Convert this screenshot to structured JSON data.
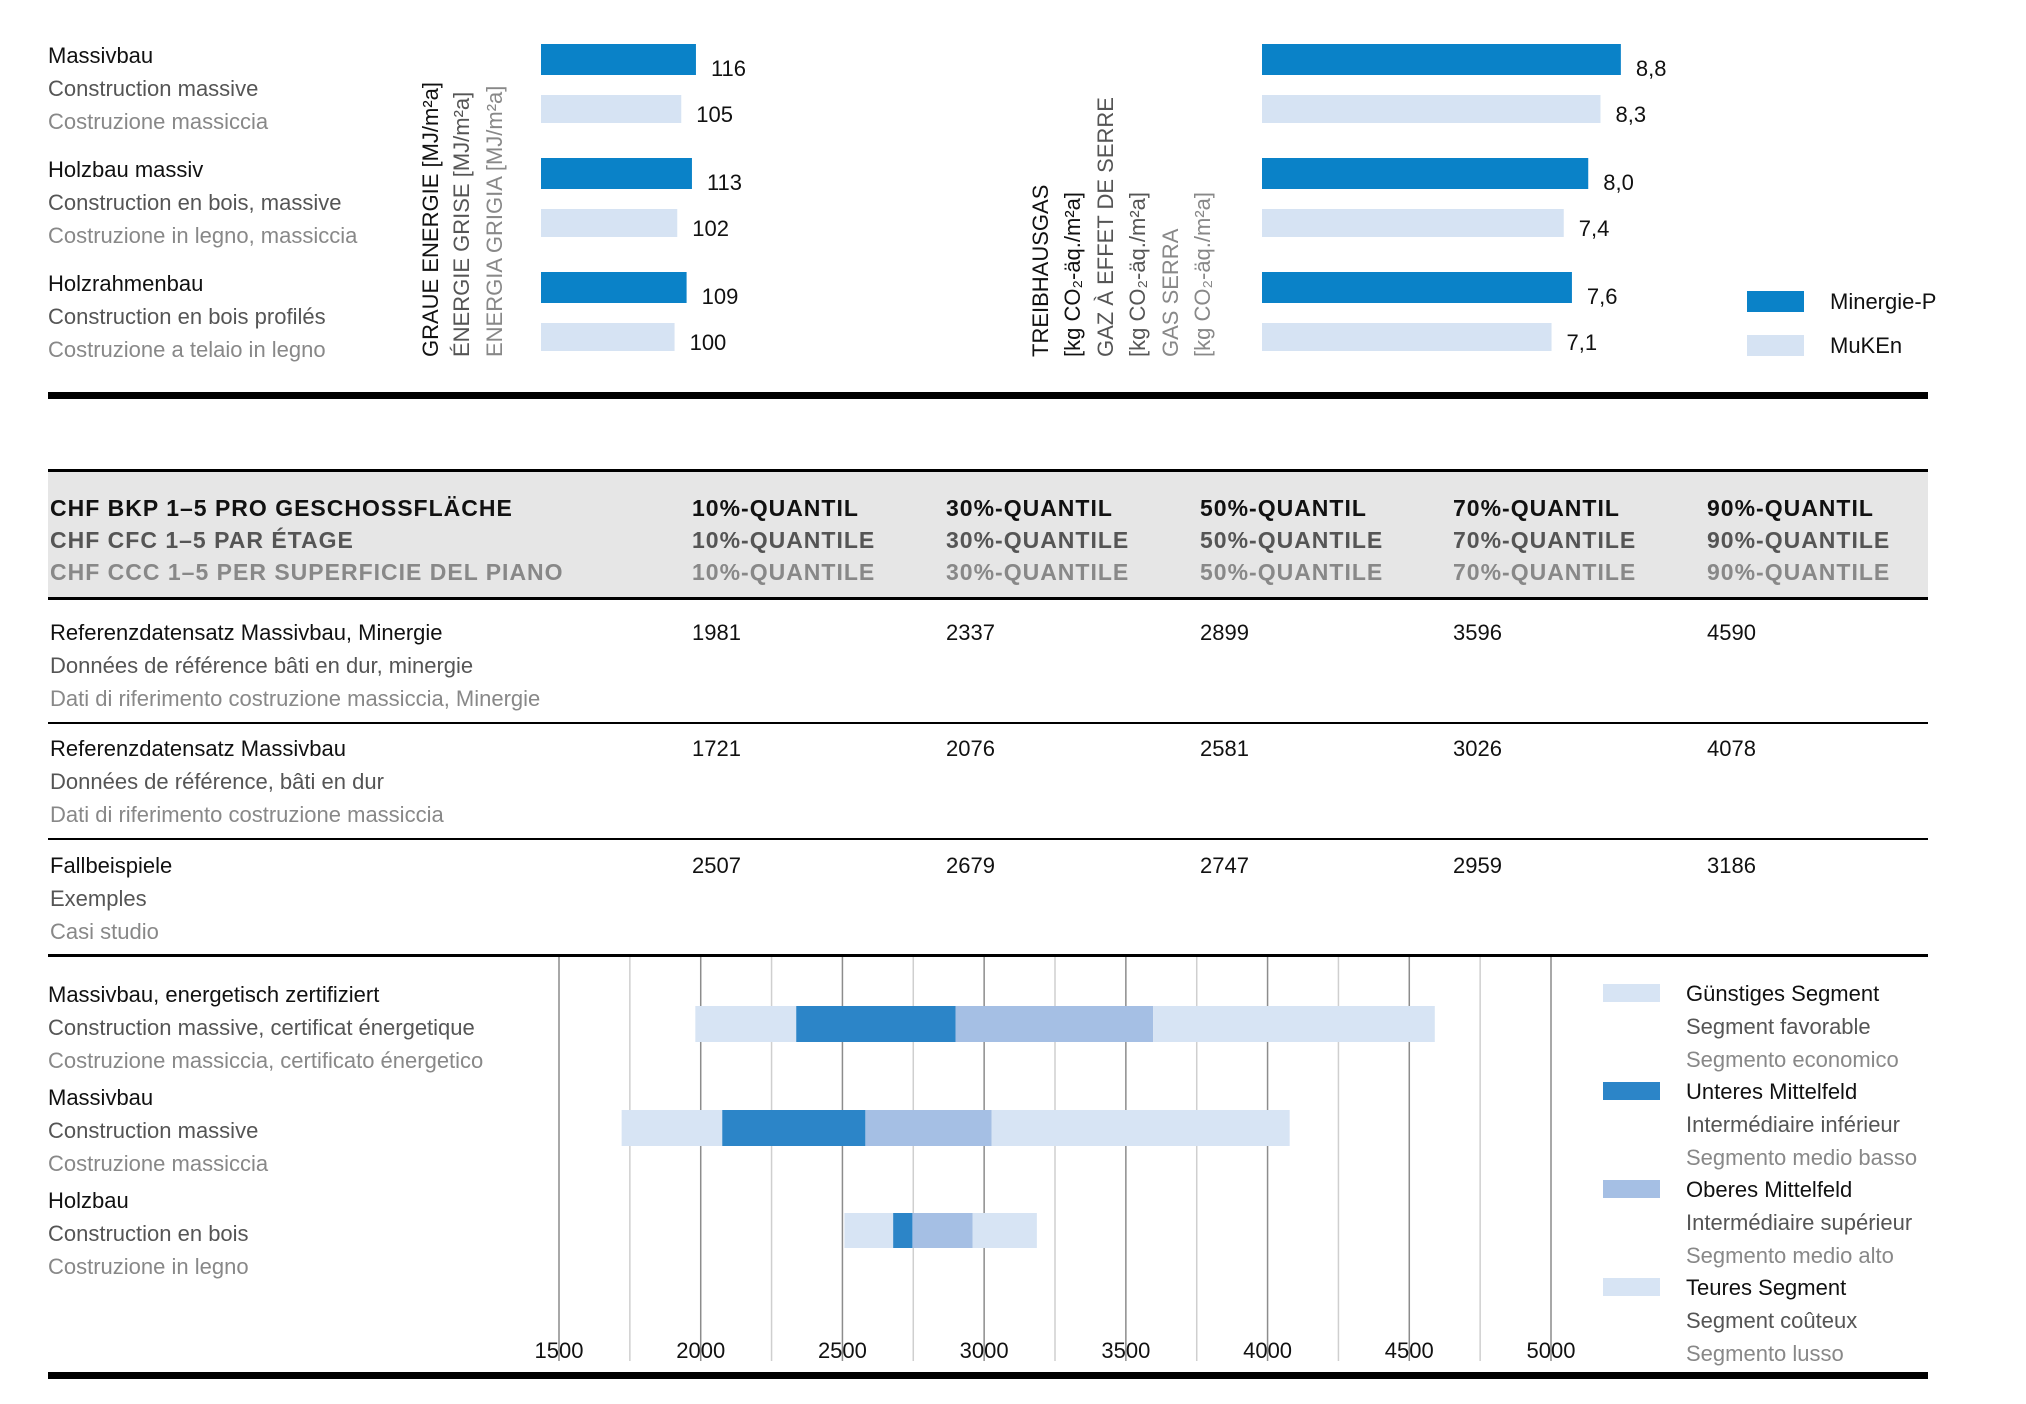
{
  "colors": {
    "minergie_p": "#0a82c8",
    "muken": "#d6e3f3",
    "guenstig": "#d7e4f4",
    "unteres": "#2c85c8",
    "oberes": "#a5bfe4",
    "teuer": "#d7e4f4",
    "header_bg": "#e6e6e6",
    "rule": "#000000",
    "grid": "#999999"
  },
  "chart_data": [
    {
      "type": "bar",
      "orientation": "horizontal",
      "axis_title": [
        "GRAUE ENERGIE [MJ/m²a]",
        "ÉNERGIE GRISE [MJ/m²a]",
        "ENERGIA GRIGIA [MJ/m²a]"
      ],
      "categories": [
        [
          "Massivbau",
          "Construction massive",
          "Costruzione massiccia"
        ],
        [
          "Holzbau massiv",
          "Construction en bois, massive",
          "Costruzione in legno, massiccia"
        ],
        [
          "Holzrahmenbau",
          "Construction en bois profilés",
          "Costruzione a telaio in legno"
        ]
      ],
      "series": [
        {
          "name": "Minergie-P",
          "values": [
            116,
            113,
            109
          ],
          "labels": [
            "116",
            "113",
            "109"
          ]
        },
        {
          "name": "MuKEn",
          "values": [
            105,
            102,
            100
          ],
          "labels": [
            "105",
            "102",
            "100"
          ]
        }
      ]
    },
    {
      "type": "bar",
      "orientation": "horizontal",
      "axis_title": [
        "TREIBHAUSGAS",
        "[kg CO₂-äq./m²a]",
        "GAZ À EFFET DE SERRE",
        "[kg CO₂-äq./m²a]",
        "GAS SERRA",
        "[kg CO₂-äq./m²a]"
      ],
      "series": [
        {
          "name": "Minergie-P",
          "values": [
            8.8,
            8.0,
            7.6
          ],
          "labels": [
            "8,8",
            "8,0",
            "7,6"
          ]
        },
        {
          "name": "MuKEn",
          "values": [
            8.3,
            7.4,
            7.1
          ],
          "labels": [
            "8,3",
            "7,4",
            "7,1"
          ]
        }
      ],
      "legend": [
        "Minergie-P",
        "MuKEn"
      ],
      "legend_position": "right"
    },
    {
      "type": "table",
      "header": {
        "label": [
          "CHF BKP 1–5 PRO GESCHOSSFLÄCHE",
          "CHF CFC 1–5 PAR ÉTAGE",
          "CHF CCC 1–5 PER SUPERFICIE DEL PIANO"
        ],
        "columns": [
          [
            "10%-QUANTIL",
            "10%-QUANTILE",
            "10%-QUANTILE"
          ],
          [
            "30%-QUANTIL",
            "30%-QUANTILE",
            "30%-QUANTILE"
          ],
          [
            "50%-QUANTIL",
            "50%-QUANTILE",
            "50%-QUANTILE"
          ],
          [
            "70%-QUANTIL",
            "70%-QUANTILE",
            "70%-QUANTILE"
          ],
          [
            "90%-QUANTIL",
            "90%-QUANTILE",
            "90%-QUANTILE"
          ]
        ]
      },
      "rows": [
        {
          "label": [
            "Referenzdatensatz Massivbau, Minergie",
            "Données de référence bâti en dur, minergie",
            "Dati di riferimento costruzione massiccia, Minergie"
          ],
          "values": [
            "1981",
            "2337",
            "2899",
            "3596",
            "4590"
          ]
        },
        {
          "label": [
            "Referenzdatensatz Massivbau",
            "Données de référence, bâti en dur",
            "Dati di riferimento costruzione massiccia"
          ],
          "values": [
            "1721",
            "2076",
            "2581",
            "3026",
            "4078"
          ]
        },
        {
          "label": [
            "Fallbeispiele",
            "Exemples",
            "Casi studio"
          ],
          "values": [
            "2507",
            "2679",
            "2747",
            "2959",
            "3186"
          ]
        }
      ]
    },
    {
      "type": "bar",
      "subtype": "range",
      "xlim": [
        1500,
        5000
      ],
      "xticks": [
        1500,
        2000,
        2500,
        3000,
        3500,
        4000,
        4500,
        5000
      ],
      "categories": [
        [
          "Massivbau, energetisch zertifiziert",
          "Construction massive, certificat énergetique",
          "Costruzione massiccia, certificato énergetico"
        ],
        [
          "Massivbau",
          "Construction massive",
          "Costruzione massiccia"
        ],
        [
          "Holzbau",
          "Construction en bois",
          "Costruzione in legno"
        ]
      ],
      "ranges": [
        [
          1981,
          2337,
          2899,
          3596,
          4590
        ],
        [
          1721,
          2076,
          2581,
          3026,
          4078
        ],
        [
          2507,
          2679,
          2747,
          2959,
          3186
        ]
      ],
      "segments": [
        {
          "key": "guenstig",
          "label": [
            "Günstiges Segment",
            "Segment favorable",
            "Segmento economico"
          ]
        },
        {
          "key": "unteres",
          "label": [
            "Unteres Mittelfeld",
            "Intermédiaire inférieur",
            "Segmento medio basso"
          ]
        },
        {
          "key": "oberes",
          "label": [
            "Oberes Mittelfeld",
            "Intermédiaire supérieur",
            "Segmento medio alto"
          ]
        },
        {
          "key": "teuer",
          "label": [
            "Teures Segment",
            "Segment coûteux",
            "Segmento lusso"
          ]
        }
      ],
      "legend_position": "right"
    }
  ]
}
